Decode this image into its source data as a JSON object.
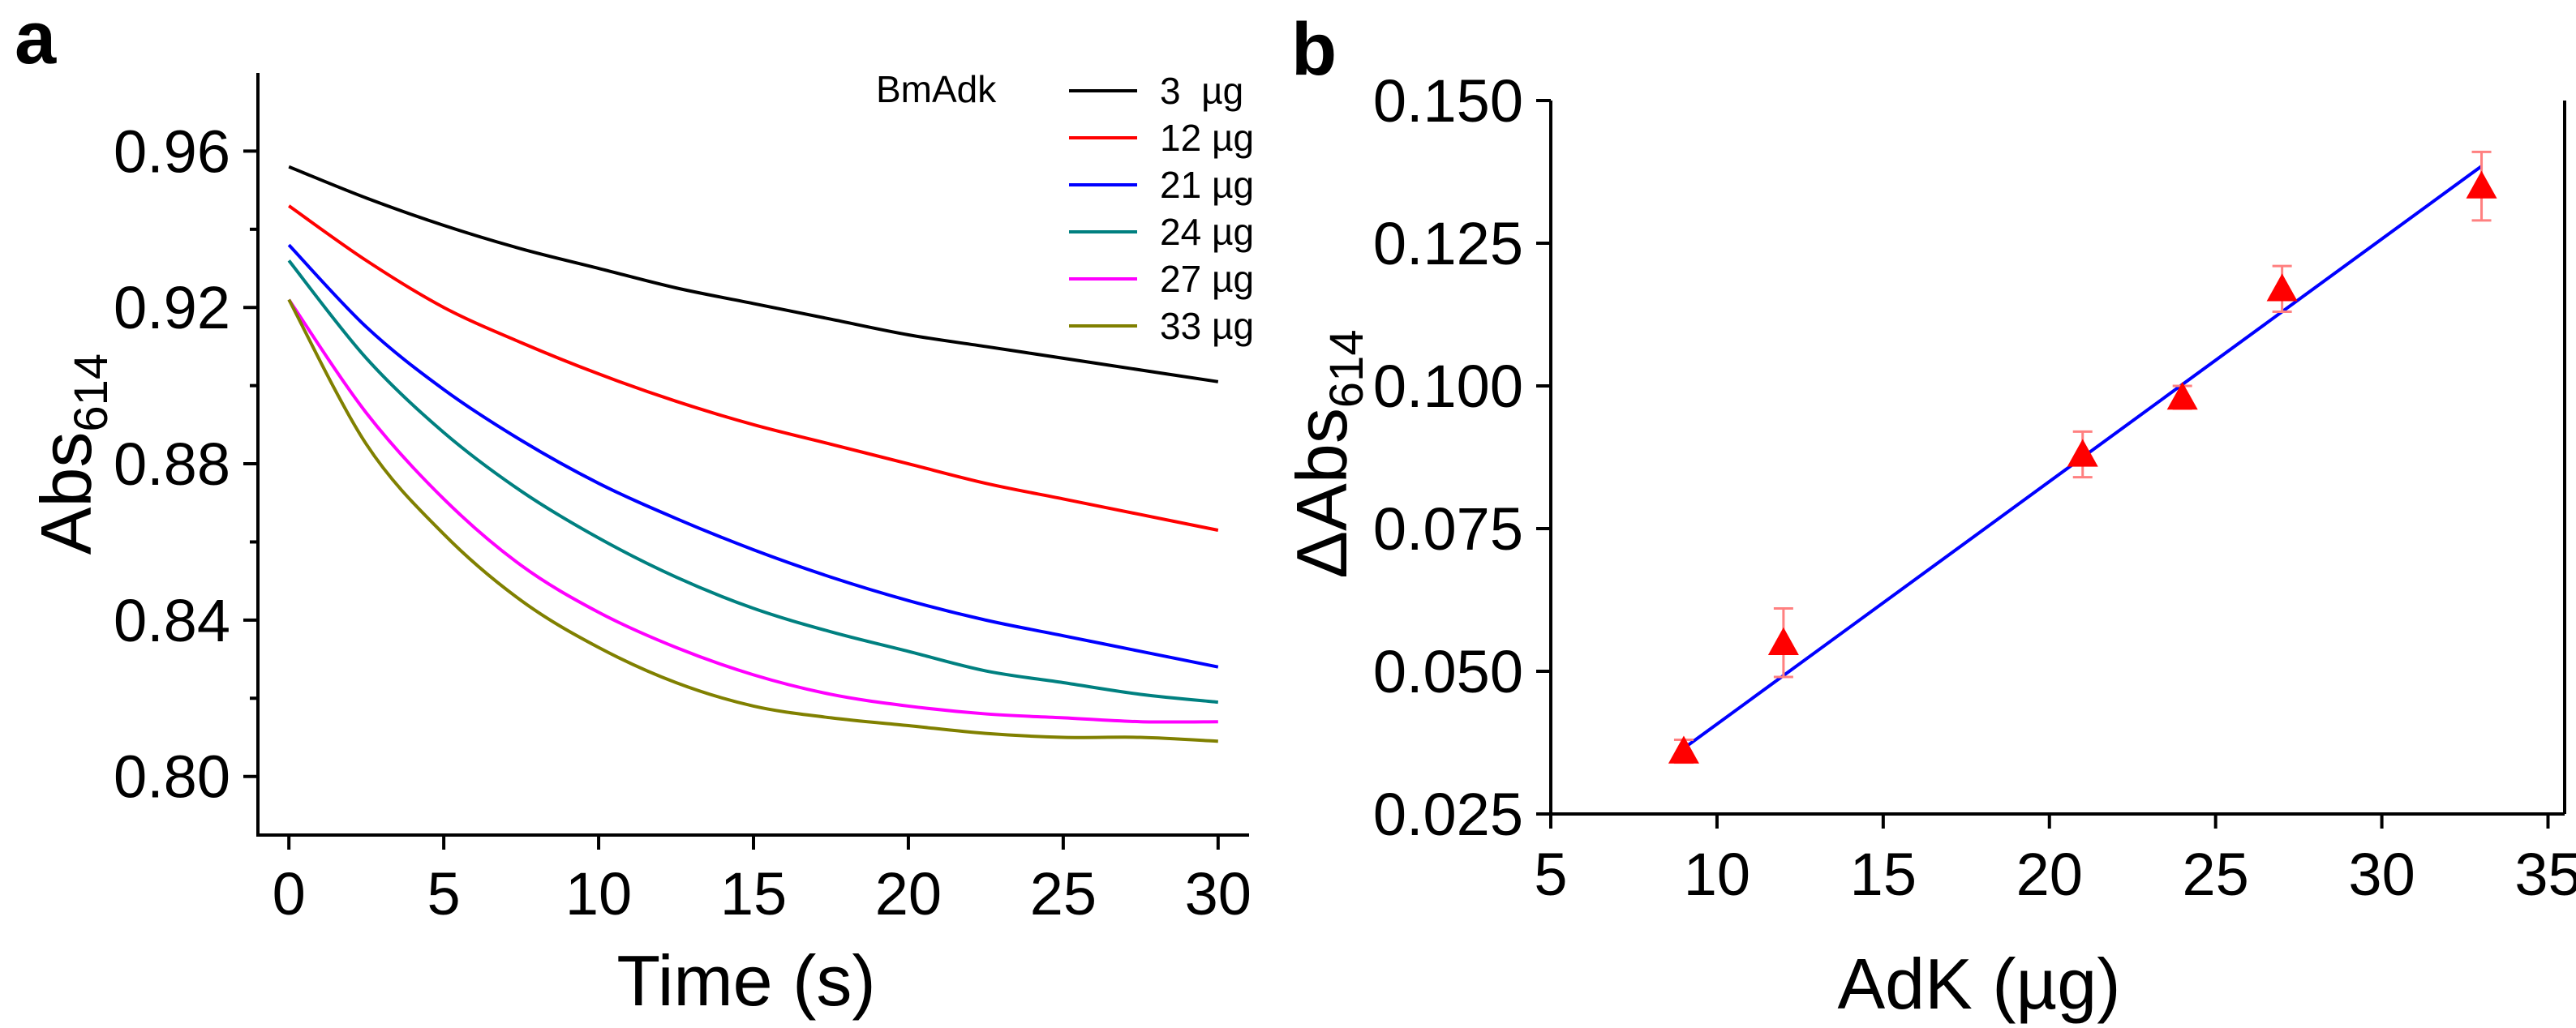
{
  "chart_data": [
    {
      "type": "line",
      "panel_label": "a",
      "xlabel": "Time (s)",
      "ylabel": "Abs",
      "ylabel_sub": "614",
      "xlim": [
        -1,
        31
      ],
      "ylim": [
        0.785,
        0.98
      ],
      "xticks": [
        0,
        5,
        10,
        15,
        20,
        25,
        30
      ],
      "yticks": [
        0.8,
        0.84,
        0.88,
        0.92,
        0.96
      ],
      "ytick_labels": [
        "0.80",
        "0.84",
        "0.88",
        "0.92",
        "0.96"
      ],
      "legend_title": "BmAdk",
      "legend_position": "top-right",
      "x": [
        0,
        2.5,
        5,
        7.5,
        10,
        12.5,
        15,
        17.5,
        20,
        22.5,
        25,
        27.5,
        30
      ],
      "series": [
        {
          "name": "3  µg",
          "color": "#000000",
          "values": [
            0.956,
            0.948,
            0.941,
            0.935,
            0.93,
            0.925,
            0.921,
            0.917,
            0.913,
            0.91,
            0.907,
            0.904,
            0.901
          ]
        },
        {
          "name": "12 µg",
          "color": "#ff0000",
          "values": [
            0.946,
            0.932,
            0.92,
            0.911,
            0.903,
            0.896,
            0.89,
            0.885,
            0.88,
            0.875,
            0.871,
            0.867,
            0.863
          ]
        },
        {
          "name": "21 µg",
          "color": "#0000ff",
          "values": [
            0.936,
            0.915,
            0.899,
            0.886,
            0.875,
            0.866,
            0.858,
            0.851,
            0.845,
            0.84,
            0.836,
            0.832,
            0.828
          ]
        },
        {
          "name": "24 µg",
          "color": "#008080",
          "values": [
            0.932,
            0.907,
            0.888,
            0.873,
            0.861,
            0.851,
            0.843,
            0.837,
            0.832,
            0.827,
            0.824,
            0.821,
            0.819
          ]
        },
        {
          "name": "27 µg",
          "color": "#ff00ff",
          "values": [
            0.922,
            0.893,
            0.871,
            0.854,
            0.842,
            0.833,
            0.826,
            0.821,
            0.818,
            0.816,
            0.815,
            0.814,
            0.814
          ]
        },
        {
          "name": "33 µg",
          "color": "#808000",
          "values": [
            0.922,
            0.885,
            0.862,
            0.845,
            0.833,
            0.824,
            0.818,
            0.815,
            0.813,
            0.811,
            0.81,
            0.81,
            0.809
          ]
        }
      ]
    },
    {
      "type": "scatter",
      "panel_label": "b",
      "xlabel": "AdK (µg)",
      "ylabel": "ΔAbs",
      "ylabel_sub": "614",
      "xlim": [
        5,
        35.5
      ],
      "ylim": [
        0.025,
        0.15
      ],
      "xticks": [
        5,
        10,
        15,
        20,
        25,
        30,
        35
      ],
      "yticks": [
        0.025,
        0.05,
        0.075,
        0.1,
        0.125,
        0.15
      ],
      "ytick_labels": [
        "0.025",
        "0.050",
        "0.075",
        "0.100",
        "0.125",
        "0.150"
      ],
      "points": [
        {
          "x": 9,
          "y": 0.036,
          "err": 0.002
        },
        {
          "x": 12,
          "y": 0.055,
          "err": 0.006
        },
        {
          "x": 21,
          "y": 0.088,
          "err": 0.004
        },
        {
          "x": 24,
          "y": 0.098,
          "err": 0.002
        },
        {
          "x": 27,
          "y": 0.117,
          "err": 0.004
        },
        {
          "x": 33,
          "y": 0.135,
          "err": 0.006
        }
      ],
      "fit_line": {
        "x": [
          9,
          33
        ],
        "y": [
          0.0365,
          0.1385
        ]
      },
      "marker_color": "#ff0000",
      "errorbar_color": "#ff8080",
      "fit_color": "#0000ff"
    }
  ]
}
